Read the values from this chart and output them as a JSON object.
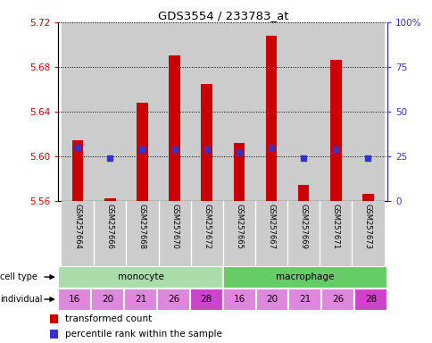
{
  "title": "GDS3554 / 233783_at",
  "samples": [
    "GSM257664",
    "GSM257666",
    "GSM257668",
    "GSM257670",
    "GSM257672",
    "GSM257665",
    "GSM257667",
    "GSM257669",
    "GSM257671",
    "GSM257673"
  ],
  "transformed_count": [
    5.614,
    5.562,
    5.648,
    5.69,
    5.665,
    5.612,
    5.708,
    5.574,
    5.686,
    5.566
  ],
  "percentile_rank": [
    30,
    24,
    29,
    29,
    29,
    27,
    30,
    24,
    29,
    24
  ],
  "cell_types": [
    "monocyte",
    "monocyte",
    "monocyte",
    "monocyte",
    "monocyte",
    "macrophage",
    "macrophage",
    "macrophage",
    "macrophage",
    "macrophage"
  ],
  "individuals": [
    "16",
    "20",
    "21",
    "26",
    "28",
    "16",
    "20",
    "21",
    "26",
    "28"
  ],
  "ylim_left": [
    5.56,
    5.72
  ],
  "ylim_right": [
    0,
    100
  ],
  "yticks_left": [
    5.56,
    5.6,
    5.64,
    5.68,
    5.72
  ],
  "yticks_right": [
    0,
    25,
    50,
    75,
    100
  ],
  "ytick_labels_right": [
    "0",
    "25",
    "50",
    "75",
    "100%"
  ],
  "bar_color": "#cc0000",
  "dot_color": "#3333cc",
  "bar_bottom": 5.56,
  "bar_width": 0.35,
  "monocyte_color": "#aaddaa",
  "macrophage_color": "#66cc66",
  "individual_colors": [
    "#dd88dd",
    "#dd88dd",
    "#dd88dd",
    "#dd88dd",
    "#cc44cc",
    "#dd88dd",
    "#dd88dd",
    "#dd88dd",
    "#dd88dd",
    "#cc44cc"
  ],
  "sample_bg_colors": [
    "#cccccc",
    "#cccccc",
    "#cccccc",
    "#cccccc",
    "#cccccc",
    "#cccccc",
    "#cccccc",
    "#cccccc",
    "#cccccc",
    "#cccccc"
  ],
  "grid_color": "#000000",
  "left_tick_color": "#cc0000",
  "right_tick_color": "#3333cc",
  "legend_red": "transformed count",
  "legend_blue": "percentile rank within the sample"
}
